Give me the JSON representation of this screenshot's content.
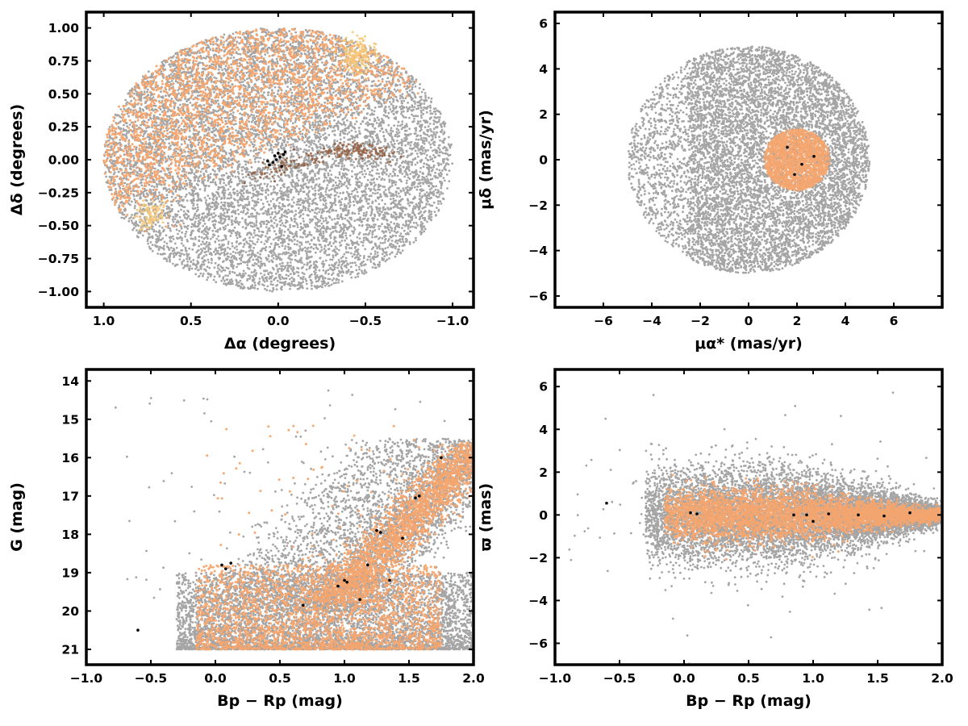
{
  "chart_data": [
    {
      "id": "sky",
      "type": "scatter",
      "xlabel": "Δα (degrees)",
      "ylabel": "Δδ (degrees)",
      "xlim": [
        1.1,
        -1.12
      ],
      "ylim": [
        -1.12,
        1.12
      ],
      "x_inverted": true,
      "xticks": [
        1.0,
        0.5,
        0.0,
        -0.5,
        -1.0
      ],
      "xtick_labels": [
        "1.0",
        "0.5",
        "0.0",
        "−0.5",
        "−1.0"
      ],
      "yticks": [
        1.0,
        0.75,
        0.5,
        0.25,
        0.0,
        -0.25,
        -0.5,
        -0.75,
        -1.0
      ],
      "ytick_labels": [
        "1.00",
        "0.75",
        "0.50",
        "0.25",
        "0.00",
        "−0.25",
        "−0.50",
        "−0.75",
        "−1.00"
      ],
      "grid": false,
      "series": [
        {
          "role": "field",
          "color": "#a0a0a0",
          "extent": {
            "center": [
              0.0,
              0.0
            ],
            "radius": 1.0
          },
          "approx_count": 9000
        },
        {
          "role": "selected",
          "color": "#f7a46b",
          "extent": {
            "region": "upper-left half"
          },
          "approx_count": 5500
        },
        {
          "role": "highlight",
          "color": "#f5c878",
          "clumps": [
            [
              -0.45,
              0.8
            ],
            [
              0.72,
              -0.42
            ]
          ]
        },
        {
          "role": "band",
          "color": "#8b4d2a",
          "x": [
            0.1,
            -0.05,
            -0.2,
            -0.35,
            -0.45,
            -0.55
          ],
          "y": [
            -0.12,
            -0.05,
            0.02,
            0.06,
            0.08,
            0.04
          ]
        },
        {
          "role": "members",
          "color": "#000000",
          "x": [
            0.05,
            0.03,
            0.01,
            -0.01,
            -0.03,
            -0.04,
            0.02,
            -0.02,
            0.06,
            0.0
          ],
          "y": [
            -0.04,
            -0.02,
            0.0,
            0.02,
            0.04,
            0.06,
            0.03,
            -0.05,
            -0.01,
            0.05
          ]
        }
      ]
    },
    {
      "id": "pm",
      "type": "scatter",
      "xlabel": "μα* (mas/yr)",
      "ylabel": "μδ (mas/yr)",
      "xlim": [
        -8.0,
        8.0
      ],
      "ylim": [
        -6.5,
        6.5
      ],
      "xticks": [
        -6,
        -4,
        -2,
        0,
        2,
        4,
        6
      ],
      "xtick_labels": [
        "−6",
        "−4",
        "−2",
        "0",
        "2",
        "4",
        "6"
      ],
      "yticks": [
        6,
        4,
        2,
        0,
        -2,
        -4,
        -6
      ],
      "ytick_labels": [
        "6",
        "4",
        "2",
        "0",
        "−2",
        "−4",
        "−6"
      ],
      "grid": false,
      "series": [
        {
          "role": "field",
          "color": "#a0a0a0",
          "extent": {
            "center": [
              0.0,
              0.0
            ],
            "radius": 5.0
          },
          "approx_count": 9000
        },
        {
          "role": "selected",
          "color": "#f7a46b",
          "extent": {
            "center": [
              2.0,
              0.0
            ],
            "radius": 1.4
          },
          "approx_count": 1500
        },
        {
          "role": "members",
          "color": "#000000",
          "x": [
            1.6,
            2.2,
            2.7,
            1.9
          ],
          "y": [
            0.55,
            -0.2,
            0.15,
            -0.65
          ]
        }
      ]
    },
    {
      "id": "cmd",
      "type": "scatter",
      "xlabel": "Bp − Rp (mag)",
      "ylabel": "G (mag)",
      "xlim": [
        -1.0,
        2.0
      ],
      "ylim": [
        21.4,
        13.7
      ],
      "y_inverted": true,
      "xticks": [
        -1.0,
        -0.5,
        0.0,
        0.5,
        1.0,
        1.5,
        2.0
      ],
      "xtick_labels": [
        "−1.0",
        "−0.5",
        "0.0",
        "0.5",
        "1.0",
        "1.5",
        "2.0"
      ],
      "yticks": [
        21,
        20,
        19,
        18,
        17,
        16,
        15,
        14
      ],
      "ytick_labels": [
        "21",
        "20",
        "19",
        "18",
        "17",
        "16",
        "15",
        "14"
      ],
      "grid": false,
      "series": [
        {
          "role": "field",
          "color": "#a0a0a0",
          "extent": {
            "x": [
              -0.6,
              2.0
            ],
            "y": [
              21.0,
              15.5
            ]
          },
          "approx_count": 9000
        },
        {
          "role": "selected",
          "color": "#f7a46b",
          "extent": {
            "x": [
              -0.2,
              2.0
            ],
            "y": [
              21.0,
              15.6
            ]
          },
          "approx_count": 4500
        },
        {
          "role": "members",
          "color": "#000000",
          "x": [
            -0.6,
            0.05,
            0.08,
            0.12,
            0.68,
            0.95,
            1.0,
            1.02,
            1.12,
            1.18,
            1.25,
            1.28,
            1.35,
            1.45,
            1.55,
            1.58,
            1.75
          ],
          "y": [
            20.5,
            18.8,
            18.9,
            18.75,
            19.85,
            19.35,
            19.2,
            19.25,
            19.7,
            18.8,
            17.9,
            17.95,
            19.2,
            18.1,
            17.05,
            17.0,
            16.0
          ]
        }
      ]
    },
    {
      "id": "plx",
      "type": "scatter",
      "xlabel": "Bp − Rp (mag)",
      "ylabel": "ϖ (mas)",
      "xlim": [
        -1.0,
        2.0
      ],
      "ylim": [
        -7.0,
        6.8
      ],
      "xticks": [
        -1.0,
        -0.5,
        0.0,
        0.5,
        1.0,
        1.5,
        2.0
      ],
      "xtick_labels": [
        "−1.0",
        "−0.5",
        "0.0",
        "0.5",
        "1.0",
        "1.5",
        "2.0"
      ],
      "yticks": [
        6,
        4,
        2,
        0,
        -2,
        -4,
        -6
      ],
      "ytick_labels": [
        "6",
        "4",
        "2",
        "0",
        "−2",
        "−4",
        "−6"
      ],
      "grid": false,
      "series": [
        {
          "role": "field",
          "color": "#a0a0a0",
          "extent": {
            "x": [
              -0.4,
              2.0
            ],
            "y": [
              -3.5,
              3.5
            ]
          },
          "approx_count": 9000
        },
        {
          "role": "selected",
          "color": "#f7a46b",
          "extent": {
            "x": [
              -0.2,
              2.0
            ],
            "y": [
              -1.5,
              1.5
            ]
          },
          "approx_count": 4000
        },
        {
          "role": "members",
          "color": "#000000",
          "x": [
            -0.6,
            0.05,
            0.1,
            0.85,
            0.95,
            1.0,
            1.12,
            1.35,
            1.55,
            1.75
          ],
          "y": [
            0.55,
            0.1,
            0.05,
            0.0,
            0.0,
            -0.3,
            0.05,
            0.0,
            -0.05,
            0.1
          ]
        }
      ]
    }
  ]
}
